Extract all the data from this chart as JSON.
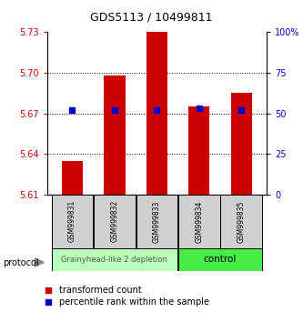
{
  "title": "GDS5113 / 10499811",
  "categories": [
    "GSM999831",
    "GSM999832",
    "GSM999833",
    "GSM999834",
    "GSM999835"
  ],
  "bar_values": [
    5.635,
    5.698,
    5.73,
    5.675,
    5.685
  ],
  "bar_base": 5.61,
  "percentile_values": [
    52,
    52,
    52,
    53,
    52
  ],
  "left_ylim": [
    5.61,
    5.73
  ],
  "left_yticks": [
    5.61,
    5.64,
    5.67,
    5.7,
    5.73
  ],
  "right_ylim": [
    0,
    100
  ],
  "right_yticks": [
    0,
    25,
    50,
    75,
    100
  ],
  "right_yticklabels": [
    "0",
    "25",
    "50",
    "75",
    "100%"
  ],
  "bar_color": "#cc0000",
  "marker_color": "#0000cc",
  "left_axis_color": "#cc0000",
  "right_axis_color": "#0000cc",
  "group1_label": "Grainyhead-like 2 depletion",
  "group2_label": "control",
  "group1_color": "#bbffbb",
  "group2_color": "#44ee44",
  "group1_indices": [
    0,
    1,
    2
  ],
  "group2_indices": [
    3,
    4
  ],
  "protocol_label": "protocol",
  "legend_red_label": "transformed count",
  "legend_blue_label": "percentile rank within the sample",
  "bar_width": 0.5,
  "title_fontsize": 9,
  "tick_fontsize": 7,
  "cat_fontsize": 5.5,
  "group_fontsize": 6,
  "legend_fontsize": 7
}
